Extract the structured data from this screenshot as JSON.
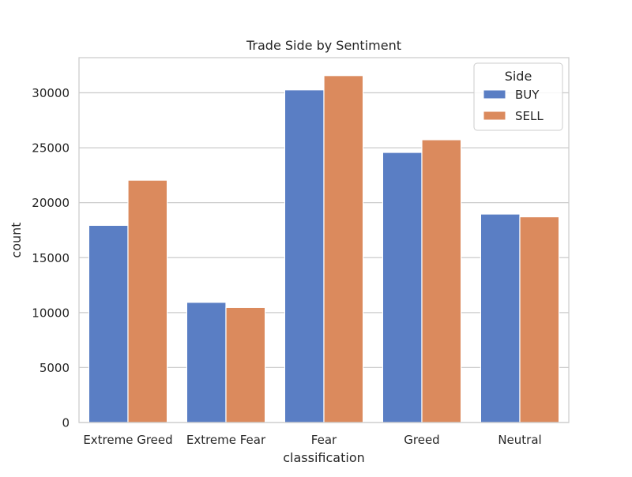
{
  "chart_data": {
    "type": "bar",
    "title": "Trade Side by Sentiment",
    "xlabel": "classification",
    "ylabel": "count",
    "categories": [
      "Extreme Greed",
      "Extreme Fear",
      "Fear",
      "Greed",
      "Neutral"
    ],
    "series": [
      {
        "name": "BUY",
        "color": "#5a7ec4",
        "values": [
          17940,
          10935,
          30270,
          24576,
          18969
        ]
      },
      {
        "name": "SELL",
        "color": "#db8a5d",
        "values": [
          22052,
          10465,
          31567,
          25731,
          18717
        ]
      }
    ],
    "ylim": [
      0,
      33200
    ],
    "yticks": [
      0,
      5000,
      10000,
      15000,
      20000,
      25000,
      30000
    ],
    "grid": "y",
    "legend": {
      "title": "Side",
      "position": "top-right"
    }
  }
}
